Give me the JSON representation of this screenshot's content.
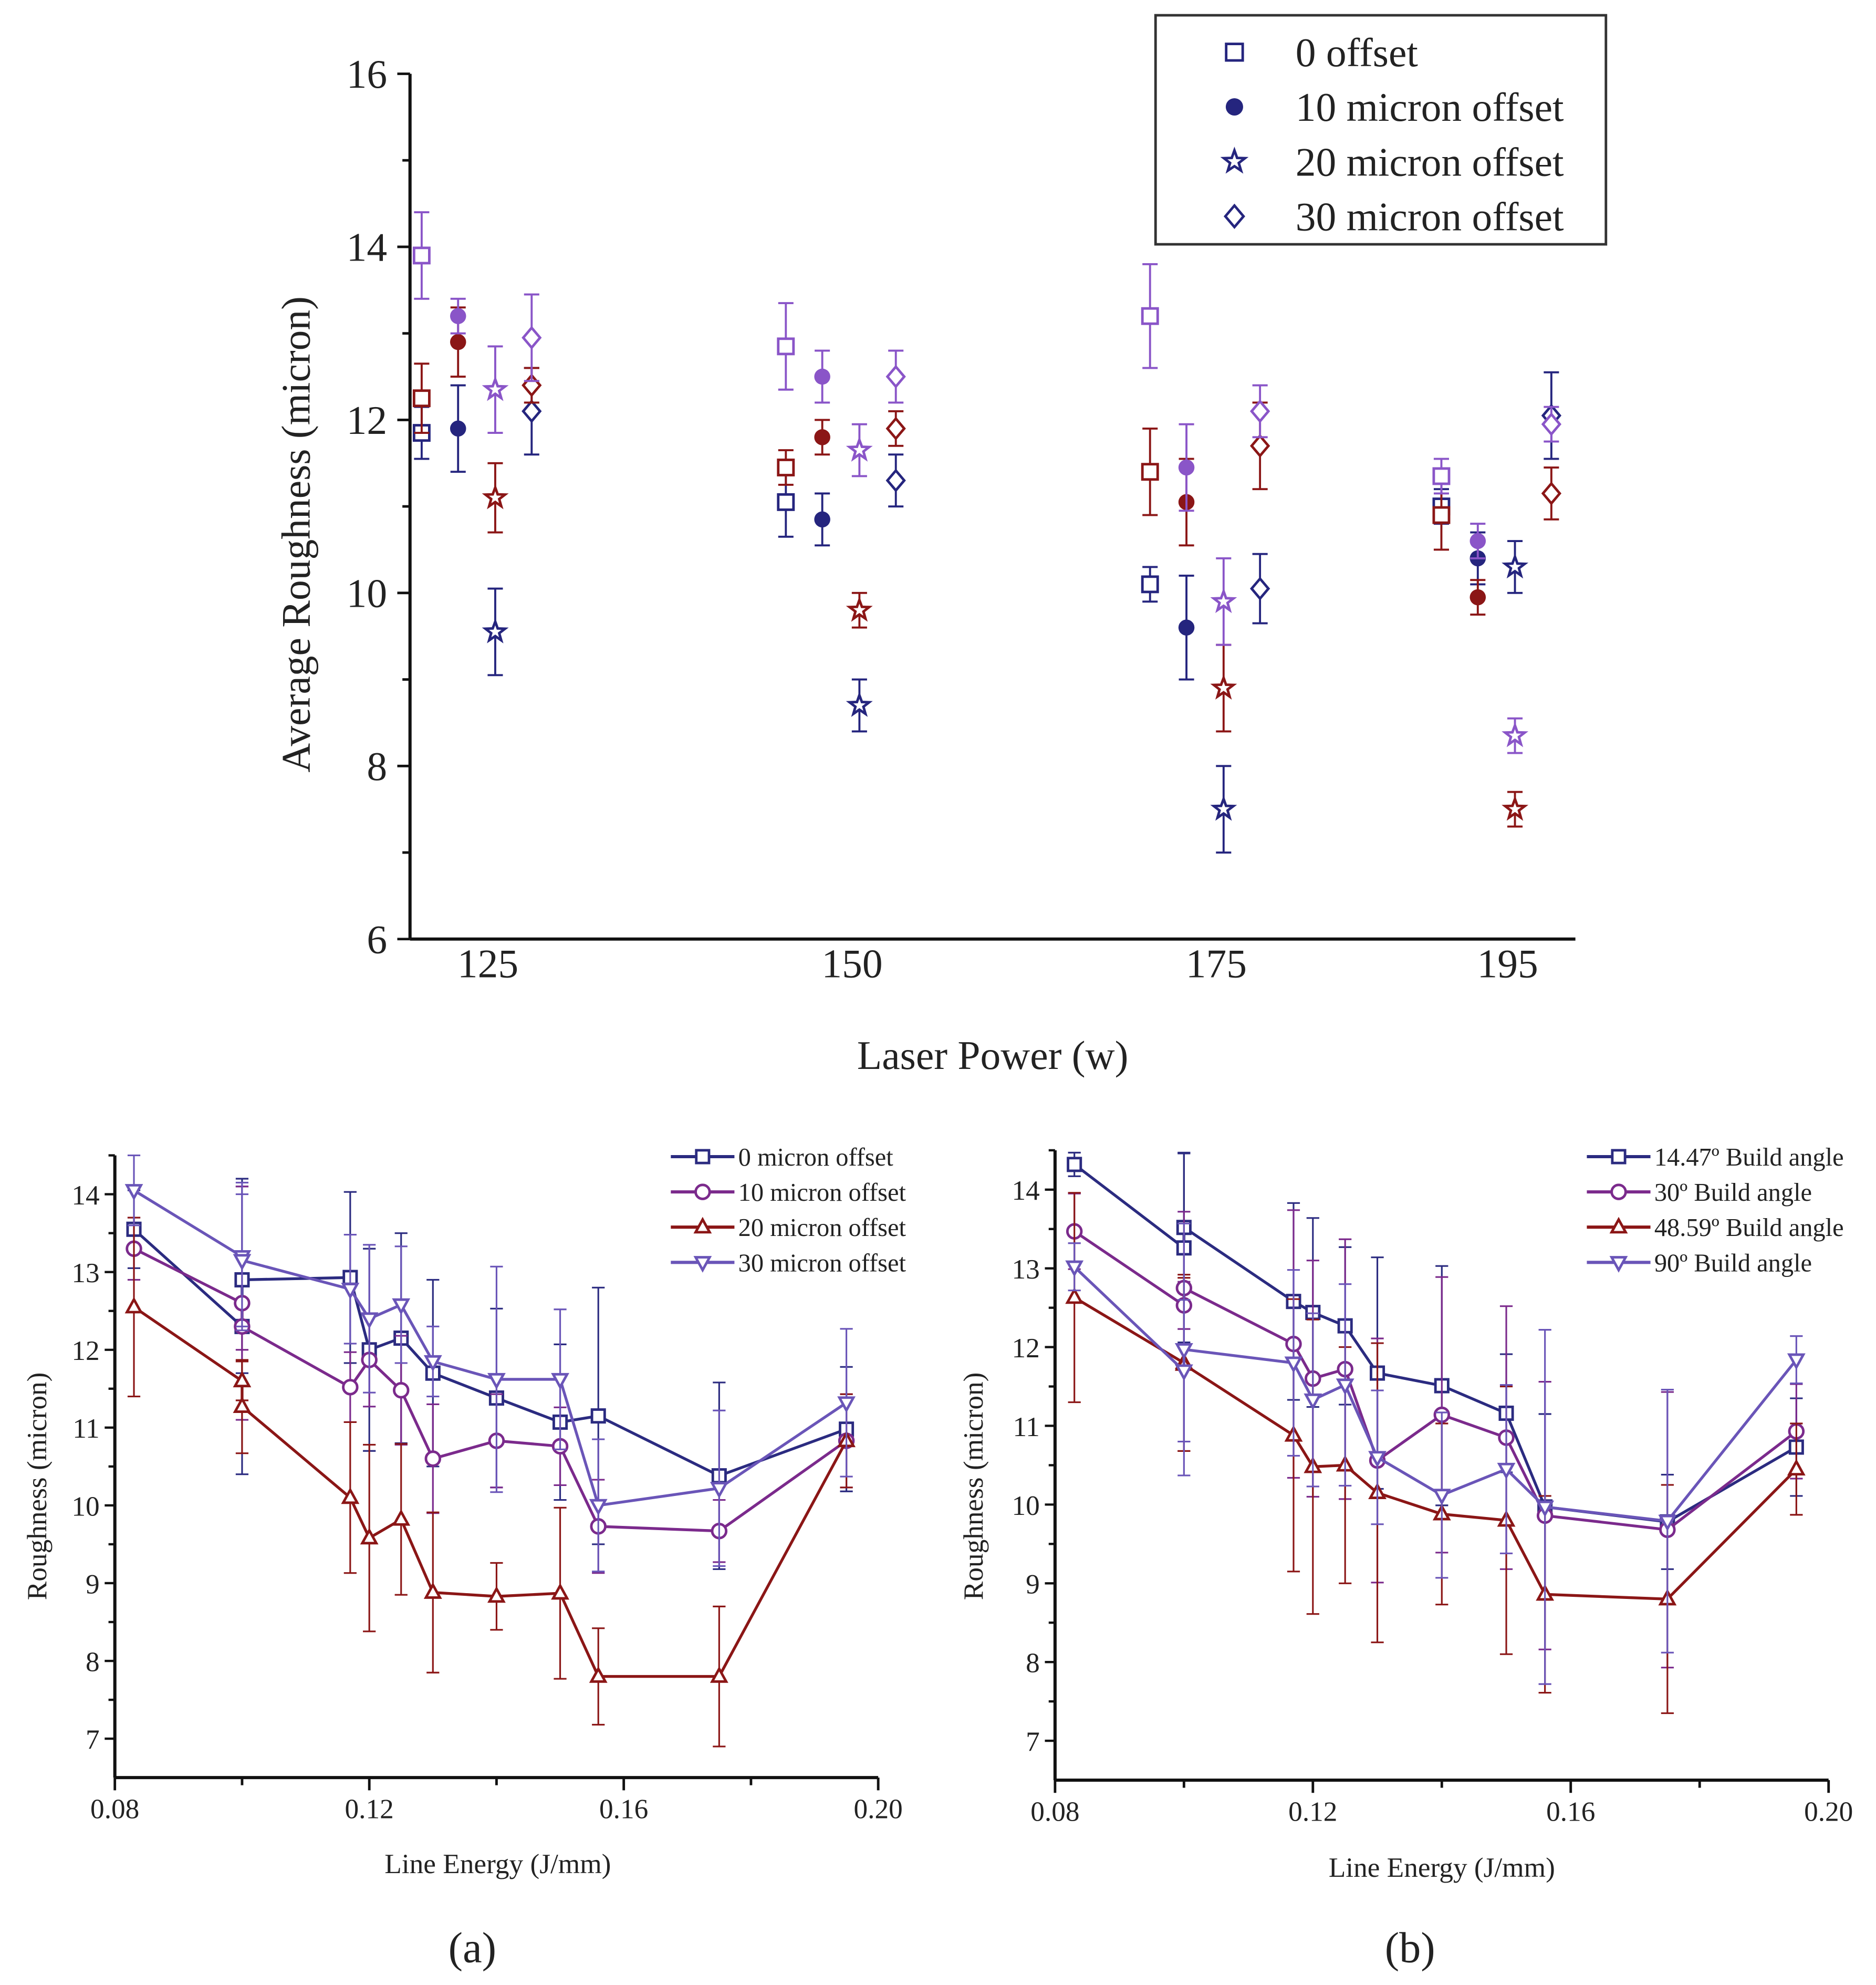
{
  "colors": {
    "navy": "#25257e",
    "maroon": "#8b1616",
    "purple": "#8a55c8"
  },
  "chart_data": [
    {
      "type": "scatter",
      "xlabel": "Laser Power (w)",
      "ylabel": "Average Roughness (micron)",
      "xlim": [
        120,
        200
      ],
      "ylim": [
        6,
        16
      ],
      "yticks": [
        6,
        8,
        10,
        12,
        14,
        16
      ],
      "xticks": [
        125,
        150,
        175,
        195
      ],
      "legend_position": "top-right",
      "grid": false,
      "series": [
        {
          "name": "0 offset",
          "marker": "square-open",
          "values": {
            "purple": [
              13.9,
              12.85,
              13.2,
              11.35
            ],
            "maroon": [
              12.25,
              11.45,
              11.4,
              10.9
            ],
            "navy": [
              11.85,
              11.05,
              10.1,
              11.0
            ]
          },
          "errors": {
            "purple": [
              0.5,
              0.5,
              0.6,
              0.2
            ],
            "maroon": [
              0.4,
              0.2,
              0.5,
              0.4
            ],
            "navy": [
              0.3,
              0.4,
              0.2,
              0.2
            ]
          }
        },
        {
          "name": "10 micron offset",
          "marker": "circle-filled",
          "values": {
            "purple": [
              13.2,
              12.5,
              11.45,
              10.6
            ],
            "maroon": [
              12.9,
              11.8,
              11.05,
              9.95
            ],
            "navy": [
              11.9,
              10.85,
              9.6,
              10.4
            ]
          },
          "errors": {
            "purple": [
              0.2,
              0.3,
              0.5,
              0.2
            ],
            "maroon": [
              0.4,
              0.2,
              0.5,
              0.2
            ],
            "navy": [
              0.5,
              0.3,
              0.6,
              0.3
            ]
          }
        },
        {
          "name": "20 micron offset",
          "marker": "star-open",
          "values": {
            "purple": [
              12.35,
              11.65,
              9.9,
              8.35
            ],
            "maroon": [
              11.1,
              9.8,
              8.9,
              7.5
            ],
            "navy": [
              9.55,
              8.7,
              7.5,
              10.3
            ]
          },
          "errors": {
            "purple": [
              0.5,
              0.3,
              0.5,
              0.2
            ],
            "maroon": [
              0.4,
              0.2,
              0.5,
              0.2
            ],
            "navy": [
              0.5,
              0.3,
              0.5,
              0.3
            ]
          }
        },
        {
          "name": "30 micron offset",
          "marker": "diamond-open",
          "values": {
            "purple": [
              12.95,
              12.5,
              12.1,
              11.95
            ],
            "maroon": [
              12.4,
              11.9,
              11.7,
              11.15
            ],
            "navy": [
              12.1,
              11.3,
              10.05,
              12.05
            ]
          },
          "errors": {
            "purple": [
              0.5,
              0.3,
              0.3,
              0.2
            ],
            "maroon": [
              0.2,
              0.2,
              0.5,
              0.3
            ],
            "navy": [
              0.5,
              0.3,
              0.4,
              0.5
            ]
          }
        }
      ]
    },
    {
      "type": "line",
      "panel_label": "(a)",
      "xlabel": "Line Energy (J/mm)",
      "ylabel": "Roughness (micron)",
      "xlim": [
        0.08,
        0.2
      ],
      "ylim": [
        6.5,
        14.5
      ],
      "xticks": [
        "0.08",
        "0.12",
        "0.16",
        "0.20"
      ],
      "yticks": [
        7,
        8,
        9,
        10,
        11,
        12,
        13,
        14
      ],
      "legend_position": "top-right",
      "grid": false,
      "x": [
        0.083,
        0.1,
        0.1,
        0.117,
        0.12,
        0.125,
        0.13,
        0.14,
        0.15,
        0.156,
        0.175,
        0.195
      ],
      "series": [
        {
          "name": "0 micron offset",
          "marker": "square",
          "color": "#2b2b80",
          "values": [
            13.55,
            12.3,
            12.9,
            12.93,
            12.0,
            12.15,
            11.7,
            11.38,
            11.07,
            11.15,
            10.38,
            10.98
          ],
          "errors": [
            0.5,
            1.9,
            1.2,
            1.1,
            1.3,
            1.35,
            1.2,
            1.15,
            1.0,
            1.65,
            1.2,
            0.8
          ]
        },
        {
          "name": "10 micron offset",
          "marker": "circle",
          "color": "#7b2a8c",
          "values": [
            13.3,
            12.6,
            12.3,
            11.52,
            11.87,
            11.48,
            10.6,
            10.83,
            10.76,
            9.73,
            9.67,
            10.83
          ],
          "errors": [
            0.4,
            1.5,
            0.3,
            0.45,
            0.6,
            0.7,
            0.7,
            0.6,
            0.5,
            0.6,
            0.4,
            0.6
          ]
        },
        {
          "name": "20 micron offset",
          "marker": "triangle-up",
          "color": "#8b1616",
          "values": [
            12.55,
            11.6,
            11.27,
            10.1,
            9.58,
            9.82,
            8.88,
            8.83,
            8.87,
            7.8,
            7.8,
            10.83
          ],
          "errors": [
            1.15,
            0.25,
            0.6,
            0.97,
            1.2,
            0.97,
            1.03,
            0.43,
            1.1,
            0.62,
            0.9,
            0.6
          ]
        },
        {
          "name": "30 micron offset",
          "marker": "triangle-down",
          "color": "#6a55b8",
          "values": [
            14.05,
            13.2,
            13.15,
            12.78,
            12.4,
            12.58,
            11.85,
            11.62,
            11.62,
            10.0,
            10.22,
            11.32
          ],
          "errors": [
            0.45,
            0.95,
            0.85,
            0.7,
            0.95,
            0.75,
            0.45,
            1.45,
            0.9,
            0.85,
            1.0,
            0.95
          ]
        }
      ]
    },
    {
      "type": "line",
      "panel_label": "(b)",
      "xlabel": "Line Energy (J/mm)",
      "ylabel": "Roughness (micron)",
      "xlim": [
        0.08,
        0.2
      ],
      "ylim": [
        6.5,
        14.5
      ],
      "xticks": [
        "0.08",
        "0.12",
        "0.16",
        "0.20"
      ],
      "yticks": [
        7,
        8,
        9,
        10,
        11,
        12,
        13,
        14
      ],
      "legend_position": "top-right",
      "grid": false,
      "x": [
        0.083,
        0.1,
        0.1,
        0.117,
        0.12,
        0.125,
        0.13,
        0.14,
        0.15,
        0.156,
        0.175,
        0.195
      ],
      "series": [
        {
          "name": "14.47º Build angle",
          "marker": "square",
          "color": "#2b2b80",
          "values": [
            14.32,
            13.26,
            13.52,
            12.58,
            12.44,
            12.27,
            11.67,
            11.51,
            11.16,
            9.97,
            9.78,
            10.73
          ],
          "errors": [
            0.15,
            1.2,
            0.95,
            1.25,
            1.2,
            1.0,
            1.47,
            1.52,
            0.75,
            1.18,
            0.6,
            0.62
          ]
        },
        {
          "name": "30º Build angle",
          "marker": "circle",
          "color": "#7b2a8c",
          "values": [
            13.47,
            12.53,
            12.75,
            12.04,
            11.6,
            11.72,
            10.56,
            11.14,
            10.85,
            9.86,
            9.68,
            10.93
          ],
          "errors": [
            0.48,
            0.3,
            0.97,
            1.7,
            1.5,
            1.65,
            1.55,
            1.75,
            1.67,
            1.7,
            1.75,
            0.6
          ]
        },
        {
          "name": "48.59º Build angle",
          "marker": "triangle-up",
          "color": "#8b1616",
          "values": [
            12.63,
            11.8,
            11.78,
            10.88,
            10.48,
            10.5,
            10.15,
            9.88,
            9.8,
            8.86,
            8.8,
            10.45
          ],
          "errors": [
            1.33,
            1.12,
            1.1,
            1.73,
            1.87,
            1.5,
            1.9,
            1.15,
            1.7,
            1.25,
            1.45,
            0.58
          ]
        },
        {
          "name": "90º Build angle",
          "marker": "triangle-down",
          "color": "#6a55b8",
          "values": [
            13.02,
            11.7,
            11.97,
            11.8,
            11.33,
            11.52,
            10.6,
            10.12,
            10.45,
            9.97,
            9.79,
            11.84
          ],
          "errors": [
            0.3,
            0.9,
            1.6,
            1.18,
            1.1,
            1.28,
            0.85,
            1.05,
            1.07,
            2.25,
            1.67,
            0.3
          ]
        }
      ]
    }
  ]
}
